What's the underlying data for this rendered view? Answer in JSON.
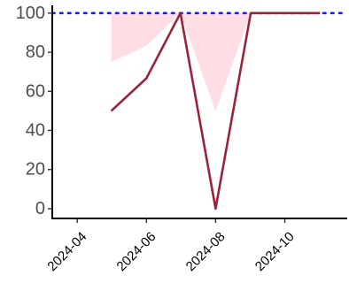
{
  "chart_data": {
    "type": "line",
    "title": "",
    "xlabel": "",
    "ylabel": "",
    "x": [
      "2024-05",
      "2024-06",
      "2024-07",
      "2024-08",
      "2024-09",
      "2024-10",
      "2024-11"
    ],
    "series": [
      {
        "values": [
          50,
          66.7,
          100,
          0,
          100,
          100,
          100
        ],
        "color": "#9b2339"
      }
    ],
    "band": {
      "lower": [
        75,
        83.3,
        100,
        50,
        100,
        100,
        100
      ],
      "upper": [
        100,
        100,
        100,
        100,
        100,
        100,
        100
      ],
      "color": "#ffdde4"
    },
    "reference_line": {
      "y": 100,
      "style": "dotted",
      "color": "#1a1aff"
    },
    "xlim": [
      "2024-03-10",
      "2024-11-25"
    ],
    "ylim": [
      -5,
      104
    ],
    "yticks": [
      0,
      20,
      40,
      60,
      80,
      100
    ],
    "xticks": [
      "2024-04",
      "2024-06",
      "2024-08",
      "2024-10"
    ],
    "grid": false,
    "legend": "none"
  }
}
